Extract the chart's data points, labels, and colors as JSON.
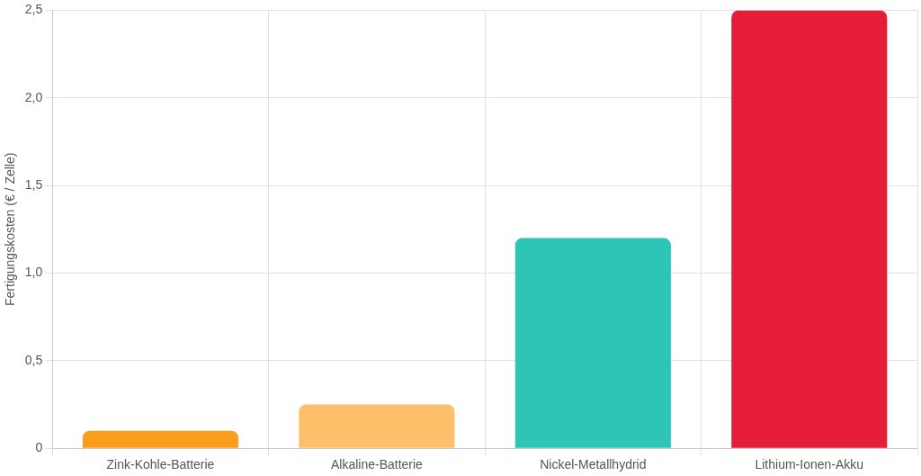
{
  "chart_data": {
    "type": "bar",
    "ylabel": "Fertigungskosten (€ / Zelle)",
    "categories": [
      "Zink-Kohle-Batterie",
      "Alkaline-Batterie",
      "Nickel-Metallhydrid",
      "Lithium-Ionen-Akku"
    ],
    "values": [
      0.1,
      0.25,
      1.2,
      2.5
    ],
    "colors": [
      "#f99e1c",
      "#fdbf6a",
      "#2ec5b6",
      "#e51d37"
    ],
    "ylim": [
      0,
      2.5
    ],
    "yticks": [
      {
        "value": 0,
        "label": "0"
      },
      {
        "value": 0.5,
        "label": "0,5"
      },
      {
        "value": 1,
        "label": "1,0"
      },
      {
        "value": 1.5,
        "label": "1,5"
      },
      {
        "value": 2,
        "label": "2,0"
      },
      {
        "value": 2.5,
        "label": "2,5"
      }
    ],
    "grid": true,
    "legend": false
  }
}
